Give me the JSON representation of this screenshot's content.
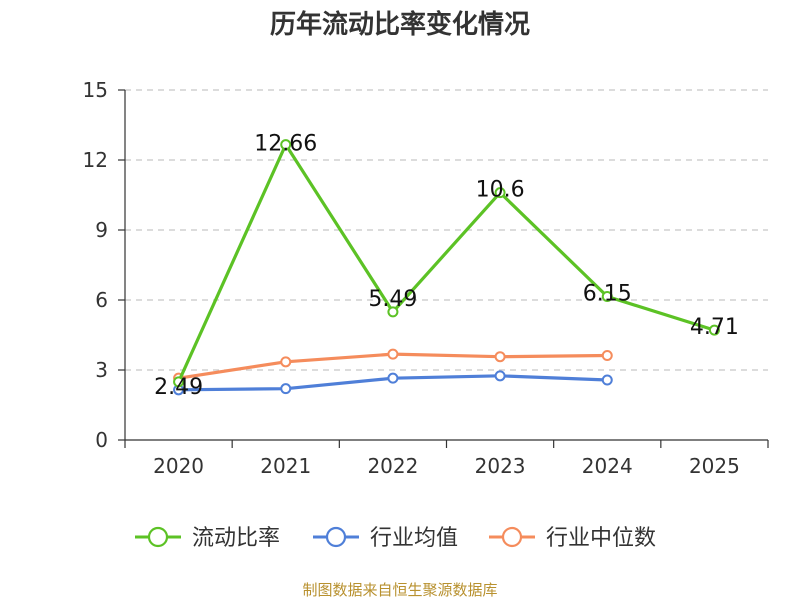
{
  "chart_data": {
    "type": "line",
    "title": "历年流动比率变化情况",
    "xlabel": "",
    "ylabel": "",
    "categories": [
      "2020",
      "2021",
      "2022",
      "2023",
      "2024",
      "2025"
    ],
    "ylim": [
      0,
      15
    ],
    "yticks": [
      0,
      3,
      6,
      9,
      12,
      15
    ],
    "grid": true,
    "legend_position": "bottom",
    "series": [
      {
        "name": "流动比率",
        "color": "#5cc225",
        "values": [
          2.49,
          12.66,
          5.49,
          10.6,
          6.15,
          4.71
        ],
        "labels": [
          "2.49",
          "12.66",
          "5.49",
          "10.6",
          "6.15",
          "4.71"
        ]
      },
      {
        "name": "行业均值",
        "color": "#4f7fd8",
        "values": [
          2.15,
          2.2,
          2.65,
          2.75,
          2.57,
          null
        ]
      },
      {
        "name": "行业中位数",
        "color": "#f58c5c",
        "values": [
          2.65,
          3.35,
          3.68,
          3.57,
          3.62,
          null
        ]
      }
    ]
  },
  "source_text": "制图数据来自恒生聚源数据库"
}
